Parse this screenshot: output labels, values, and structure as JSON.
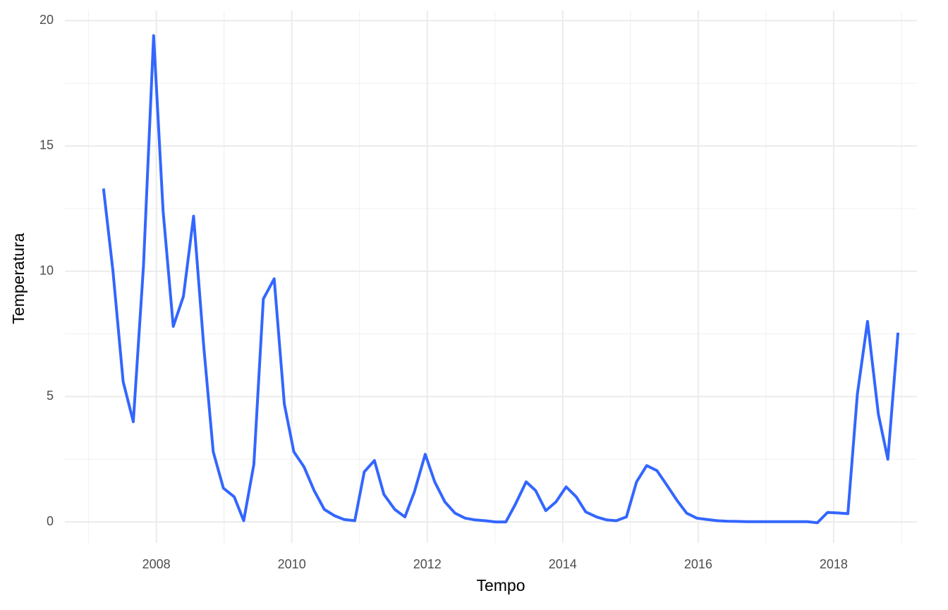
{
  "chart_data": {
    "type": "line",
    "x_label": "Tempo",
    "y_label": "Temperatura",
    "x": [
      2007.22,
      2007.36,
      2007.51,
      2007.66,
      2007.81,
      2007.96,
      2008.1,
      2008.25,
      2008.4,
      2008.55,
      2008.7,
      2008.84,
      2008.99,
      2009.15,
      2009.29,
      2009.44,
      2009.58,
      2009.74,
      2009.89,
      2010.03,
      2010.18,
      2010.33,
      2010.48,
      2010.63,
      2010.77,
      2010.93,
      2011.07,
      2011.22,
      2011.36,
      2011.52,
      2011.67,
      2011.81,
      2011.97,
      2012.11,
      2012.26,
      2012.41,
      2012.56,
      2012.71,
      2012.85,
      2013.01,
      2013.16,
      2013.3,
      2013.46,
      2013.6,
      2013.75,
      2013.9,
      2014.05,
      2014.2,
      2014.34,
      2014.5,
      2014.65,
      2014.79,
      2014.94,
      2015.09,
      2015.24,
      2015.39,
      2015.53,
      2015.69,
      2015.83,
      2015.98,
      2016.13,
      2016.28,
      2016.43,
      2016.57,
      2016.72,
      2016.88,
      2017.02,
      2017.17,
      2017.31,
      2017.47,
      2017.61,
      2017.76,
      2017.91,
      2018.06,
      2018.21,
      2018.35,
      2018.5,
      2018.66,
      2018.8,
      2018.95
    ],
    "series": [
      {
        "color": "#3366ff",
        "values": [
          13.3,
          10.0,
          5.6,
          4.0,
          10.2,
          19.4,
          12.4,
          7.8,
          9.0,
          12.2,
          7.0,
          2.8,
          1.35,
          1.0,
          0.05,
          2.3,
          8.9,
          9.7,
          4.7,
          2.8,
          2.2,
          1.25,
          0.5,
          0.25,
          0.1,
          0.05,
          2.0,
          2.45,
          1.1,
          0.5,
          0.2,
          1.2,
          2.7,
          1.6,
          0.8,
          0.35,
          0.15,
          0.08,
          0.05,
          0.0,
          0.0,
          0.7,
          1.6,
          1.25,
          0.45,
          0.8,
          1.4,
          1.0,
          0.4,
          0.2,
          0.08,
          0.05,
          0.2,
          1.6,
          2.25,
          2.05,
          1.5,
          0.85,
          0.35,
          0.15,
          0.1,
          0.05,
          0.03,
          0.02,
          0.01,
          0.01,
          0.01,
          0.01,
          0.01,
          0.01,
          0.01,
          -0.03,
          0.38,
          0.36,
          0.33,
          5.1,
          8.0,
          4.3,
          2.5,
          7.55
        ]
      }
    ],
    "xlim": [
      2006.65,
      2019.23
    ],
    "ylim": [
      -0.84,
      20.4
    ],
    "xticks": [
      2008,
      2010,
      2012,
      2014,
      2016,
      2018
    ],
    "yticks": [
      0,
      5,
      10,
      15,
      20
    ],
    "x_minor_ticks": [
      2007,
      2009,
      2011,
      2013,
      2015,
      2017,
      2019
    ],
    "y_minor_ticks": [
      2.5,
      7.5,
      12.5,
      17.5
    ],
    "grid": true
  }
}
